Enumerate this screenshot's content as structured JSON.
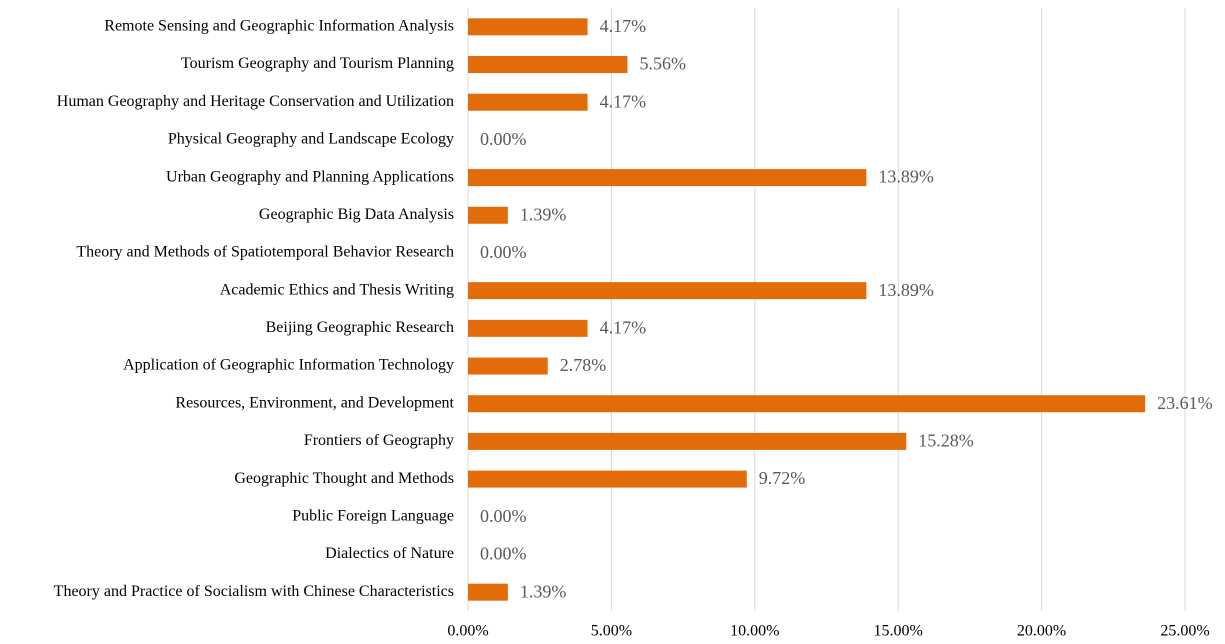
{
  "chart_data": {
    "type": "bar",
    "orientation": "horizontal",
    "categories": [
      "Remote Sensing and Geographic Information Analysis",
      "Tourism Geography and Tourism Planning",
      "Human Geography and Heritage Conservation and Utilization",
      "Physical Geography and Landscape Ecology",
      "Urban Geography and Planning Applications",
      "Geographic Big Data Analysis",
      "Theory and Methods of Spatiotemporal Behavior Research",
      "Academic Ethics and Thesis Writing",
      "Beijing Geographic Research",
      "Application of Geographic Information Technology",
      "Resources, Environment, and Development",
      "Frontiers of Geography",
      "Geographic Thought and Methods",
      "Public Foreign Language",
      "Dialectics of Nature",
      "Theory and Practice of Socialism with Chinese Characteristics"
    ],
    "values": [
      4.17,
      5.56,
      4.17,
      0,
      13.89,
      1.39,
      0,
      13.89,
      4.17,
      2.78,
      23.61,
      15.28,
      9.72,
      0,
      0,
      1.39
    ],
    "value_labels": [
      "4.17%",
      "5.56%",
      "4.17%",
      "0.00%",
      "13.89%",
      "1.39%",
      "0.00%",
      "13.89%",
      "4.17%",
      "2.78%",
      "23.61%",
      "15.28%",
      "9.72%",
      "0.00%",
      "0.00%",
      "1.39%"
    ],
    "color": "#e36c0a",
    "xlim": [
      0,
      25
    ],
    "xticks": [
      {
        "value": 0,
        "label": "0.00%"
      },
      {
        "value": 5,
        "label": "5.00%"
      },
      {
        "value": 10,
        "label": "10.00%"
      },
      {
        "value": 15,
        "label": "15.00%"
      },
      {
        "value": 20,
        "label": "20.00%"
      },
      {
        "value": 25,
        "label": "25.00%"
      }
    ],
    "grid": true
  }
}
